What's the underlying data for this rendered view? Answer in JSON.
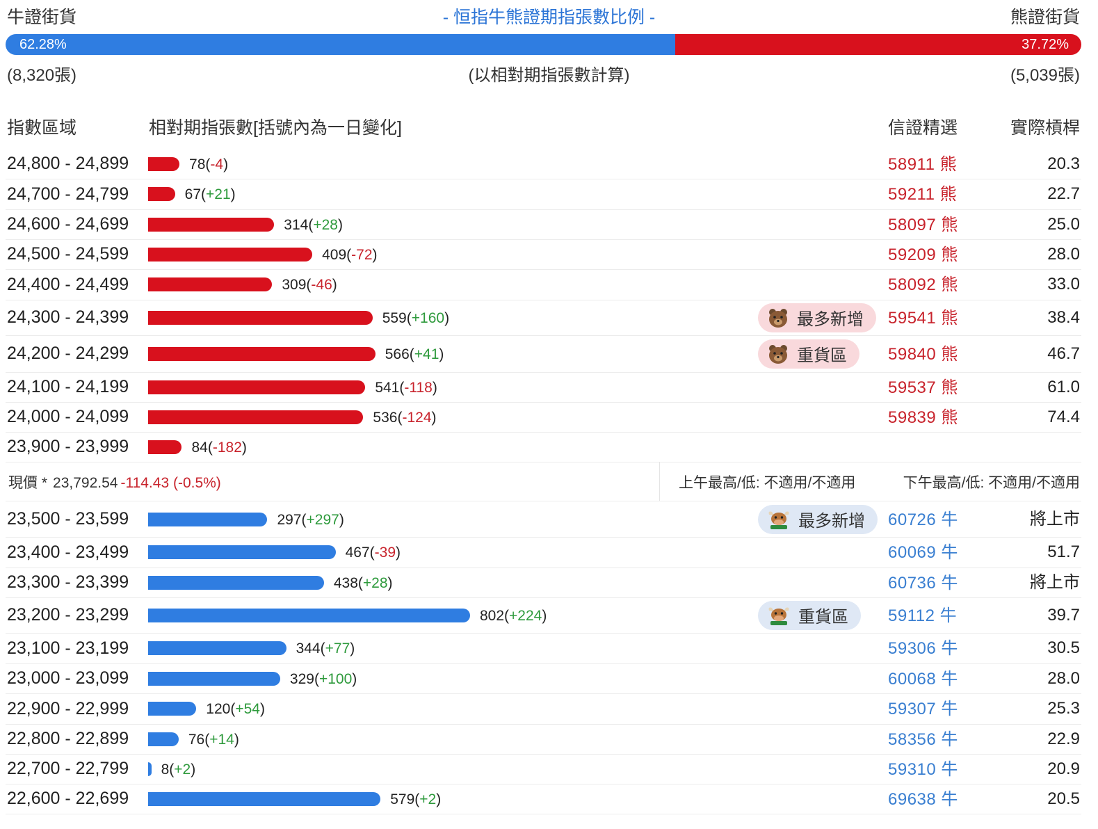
{
  "header": {
    "bull_label": "牛證街貨",
    "bear_label": "熊證街貨",
    "title": "- 恒指牛熊證期指張數比例 -"
  },
  "ratio": {
    "bull_pct_value": 62.28,
    "bull_pct": "62.28%",
    "bear_pct": "37.72%",
    "bull_count": "(8,320張)",
    "bear_count": "(5,039張)",
    "note": "(以相對期指張數計算)"
  },
  "columns": {
    "range": "指數區域",
    "count": "相對期指張數[括號內為一日變化]",
    "warrant": "信證精選",
    "gearing": "實際槓桿"
  },
  "colors": {
    "bear": "#d8111d",
    "bull": "#2f7de1",
    "positive_change": "#2e9a3c",
    "negative_change": "#c8232c"
  },
  "bear_rows": [
    {
      "range": "24,800 - 24,899",
      "count": "78",
      "change": "-4",
      "warrant": "58911 熊",
      "gearing": "20.3",
      "tag": null
    },
    {
      "range": "24,700 - 24,799",
      "count": "67",
      "change": "+21",
      "warrant": "59211 熊",
      "gearing": "22.7",
      "tag": null
    },
    {
      "range": "24,600 - 24,699",
      "count": "314",
      "change": "+28",
      "warrant": "58097 熊",
      "gearing": "25.0",
      "tag": null
    },
    {
      "range": "24,500 - 24,599",
      "count": "409",
      "change": "-72",
      "warrant": "59209 熊",
      "gearing": "28.0",
      "tag": null
    },
    {
      "range": "24,400 - 24,499",
      "count": "309",
      "change": "-46",
      "warrant": "58092 熊",
      "gearing": "33.0",
      "tag": null
    },
    {
      "range": "24,300 - 24,399",
      "count": "559",
      "change": "+160",
      "warrant": "59541 熊",
      "gearing": "38.4",
      "tag": "最多新增"
    },
    {
      "range": "24,200 - 24,299",
      "count": "566",
      "change": "+41",
      "warrant": "59840 熊",
      "gearing": "46.7",
      "tag": "重貨區"
    },
    {
      "range": "24,100 - 24,199",
      "count": "541",
      "change": "-118",
      "warrant": "59537 熊",
      "gearing": "61.0",
      "tag": null
    },
    {
      "range": "24,000 - 24,099",
      "count": "536",
      "change": "-124",
      "warrant": "59839 熊",
      "gearing": "74.4",
      "tag": null
    },
    {
      "range": "23,900 - 23,999",
      "count": "84",
      "change": "-182",
      "warrant": "",
      "gearing": "",
      "tag": null
    }
  ],
  "current": {
    "label": "現價 *",
    "price": "23,792.54",
    "change": "-114.43 (-0.5%)",
    "am": "上午最高/低: 不適用/不適用",
    "pm": "下午最高/低: 不適用/不適用"
  },
  "bull_rows": [
    {
      "range": "23,500 - 23,599",
      "count": "297",
      "change": "+297",
      "warrant": "60726 牛",
      "gearing": "將上市",
      "tag": "最多新增"
    },
    {
      "range": "23,400 - 23,499",
      "count": "467",
      "change": "-39",
      "warrant": "60069 牛",
      "gearing": "51.7",
      "tag": null
    },
    {
      "range": "23,300 - 23,399",
      "count": "438",
      "change": "+28",
      "warrant": "60736 牛",
      "gearing": "將上市",
      "tag": null
    },
    {
      "range": "23,200 - 23,299",
      "count": "802",
      "change": "+224",
      "warrant": "59112 牛",
      "gearing": "39.7",
      "tag": "重貨區"
    },
    {
      "range": "23,100 - 23,199",
      "count": "344",
      "change": "+77",
      "warrant": "59306 牛",
      "gearing": "30.5",
      "tag": null
    },
    {
      "range": "23,000 - 23,099",
      "count": "329",
      "change": "+100",
      "warrant": "60068 牛",
      "gearing": "28.0",
      "tag": null
    },
    {
      "range": "22,900 - 22,999",
      "count": "120",
      "change": "+54",
      "warrant": "59307 牛",
      "gearing": "25.3",
      "tag": null
    },
    {
      "range": "22,800 - 22,899",
      "count": "76",
      "change": "+14",
      "warrant": "58356 牛",
      "gearing": "22.9",
      "tag": null
    },
    {
      "range": "22,700 - 22,799",
      "count": "8",
      "change": "+2",
      "warrant": "59310 牛",
      "gearing": "20.9",
      "tag": null
    },
    {
      "range": "22,600 - 22,699",
      "count": "579",
      "change": "+2",
      "warrant": "69638 牛",
      "gearing": "20.5",
      "tag": null
    }
  ],
  "chart_data": {
    "type": "bar",
    "title": "- 恒指牛熊證期指張數比例 -",
    "categories": [
      "24,800 - 24,899",
      "24,700 - 24,799",
      "24,600 - 24,699",
      "24,500 - 24,599",
      "24,400 - 24,499",
      "24,300 - 24,399",
      "24,200 - 24,299",
      "24,100 - 24,199",
      "24,000 - 24,099",
      "23,900 - 23,999",
      "23,500 - 23,599",
      "23,400 - 23,499",
      "23,300 - 23,399",
      "23,200 - 23,299",
      "23,100 - 23,199",
      "23,000 - 23,099",
      "22,900 - 22,999",
      "22,800 - 22,899",
      "22,700 - 22,799",
      "22,600 - 22,699"
    ],
    "series": [
      {
        "name": "熊證街貨",
        "values": [
          78,
          67,
          314,
          409,
          309,
          559,
          566,
          541,
          536,
          84,
          null,
          null,
          null,
          null,
          null,
          null,
          null,
          null,
          null,
          null
        ],
        "changes": [
          -4,
          21,
          28,
          -72,
          -46,
          160,
          41,
          -118,
          -124,
          -182,
          null,
          null,
          null,
          null,
          null,
          null,
          null,
          null,
          null,
          null
        ]
      },
      {
        "name": "牛證街貨",
        "values": [
          null,
          null,
          null,
          null,
          null,
          null,
          null,
          null,
          null,
          null,
          297,
          467,
          438,
          802,
          344,
          329,
          120,
          76,
          8,
          579
        ],
        "changes": [
          null,
          null,
          null,
          null,
          null,
          null,
          null,
          null,
          null,
          null,
          297,
          -39,
          28,
          224,
          77,
          100,
          54,
          14,
          2,
          2
        ]
      }
    ],
    "orientation": "horizontal",
    "xlim": [
      0,
      802
    ],
    "bull_total": 8320,
    "bear_total": 5039,
    "bull_ratio_pct": 62.28,
    "bear_ratio_pct": 37.72
  }
}
